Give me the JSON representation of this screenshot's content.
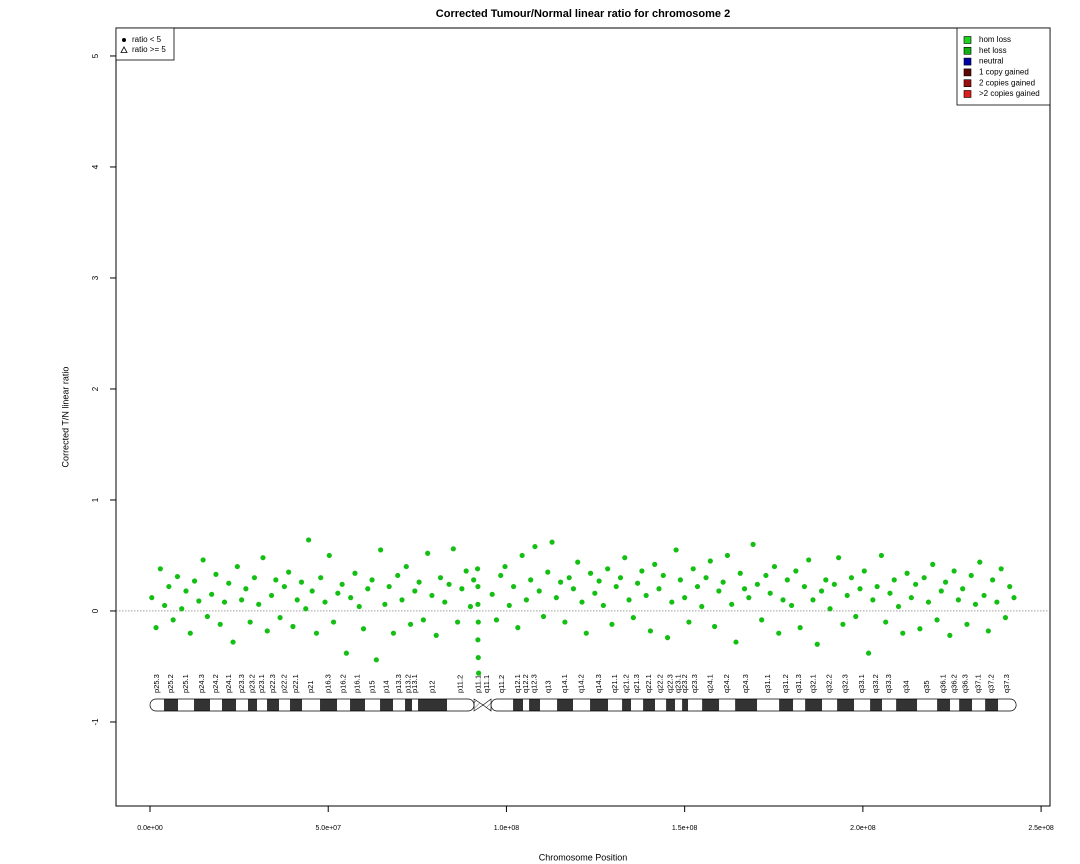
{
  "chart_data": {
    "type": "scatter",
    "title": "Corrected Tumour/Normal linear ratio for chromosome  2",
    "x_label": "Chromosome Position",
    "y_label": "Corrected T/N linear ratio",
    "xlim": [
      -9540000,
      252500000
    ],
    "ylim": [
      -1.757,
      5.252
    ],
    "xticks": [
      {
        "value": 0,
        "label": "0.0e+00"
      },
      {
        "value": 50000000,
        "label": "5.0e+07"
      },
      {
        "value": 100000000,
        "label": "1.0e+08"
      },
      {
        "value": 150000000,
        "label": "1.5e+08"
      },
      {
        "value": 200000000,
        "label": "2.0e+08"
      },
      {
        "value": 250000000,
        "label": "2.5e+08"
      }
    ],
    "yticks": [
      -1,
      0,
      1,
      2,
      3,
      4,
      5
    ],
    "hline": 0,
    "shape_legend": [
      "ratio < 5",
      "ratio >= 5"
    ],
    "color_legend": [
      {
        "label": "hom loss",
        "color": "#1fd21f"
      },
      {
        "label": "het loss",
        "color": "#10b010"
      },
      {
        "label": "neutral",
        "color": "#0000a8"
      },
      {
        "label": "1 copy gained",
        "color": "#5a0a00"
      },
      {
        "label": "2 copies gained",
        "color": "#9a1010"
      },
      {
        "label": ">2 copies gained",
        "color": "#dd1c1c"
      }
    ],
    "series": [
      {
        "color": "#14bf14",
        "x": [
          500000,
          1700000,
          2900000,
          4100000,
          5300000,
          6500000,
          7700000,
          8900000,
          10100000,
          11300000,
          12500000,
          13700000,
          14900000,
          16100000,
          17300000,
          18500000,
          19700000,
          20900000,
          22100000,
          23300000,
          24500000,
          25700000,
          26900000,
          28100000,
          29300000,
          30500000,
          31700000,
          32900000,
          34100000,
          35300000,
          36500000,
          37700000,
          38900000,
          40100000,
          41300000,
          42500000,
          43700000,
          44500000,
          45500000,
          46700000,
          47900000,
          49100000,
          50300000,
          51500000,
          52700000,
          53900000,
          55100000,
          56300000,
          57500000,
          58700000,
          59900000,
          61100000,
          62300000,
          63500000,
          64700000,
          65900000,
          67100000,
          68300000,
          69500000,
          70700000,
          71900000,
          73100000,
          74300000,
          75500000,
          76700000,
          77900000,
          79100000,
          80300000,
          81500000,
          82700000,
          83900000,
          85100000,
          86300000,
          87500000,
          88700000,
          89900000,
          90800000,
          91900000,
          92000000,
          92000000,
          92100000,
          92000000,
          92100000,
          92200000,
          96000000,
          97200000,
          98400000,
          99600000,
          100800000,
          102000000,
          103200000,
          104400000,
          105600000,
          106800000,
          108000000,
          109200000,
          110400000,
          111600000,
          112800000,
          114000000,
          115200000,
          116400000,
          117600000,
          118800000,
          120000000,
          121200000,
          122400000,
          123600000,
          124800000,
          126000000,
          127200000,
          128400000,
          129600000,
          130800000,
          132000000,
          133200000,
          134400000,
          135600000,
          136800000,
          138000000,
          139200000,
          140400000,
          141600000,
          142800000,
          144000000,
          145200000,
          146400000,
          147600000,
          148800000,
          150000000,
          151200000,
          152400000,
          153600000,
          154800000,
          156000000,
          157200000,
          158400000,
          159600000,
          160800000,
          162000000,
          163200000,
          164400000,
          165600000,
          166800000,
          168000000,
          169200000,
          170400000,
          171600000,
          172800000,
          174000000,
          175200000,
          176400000,
          177600000,
          178800000,
          180000000,
          181200000,
          182400000,
          183600000,
          184800000,
          186000000,
          187200000,
          188400000,
          189600000,
          190800000,
          192000000,
          193200000,
          194400000,
          195600000,
          196800000,
          198000000,
          199200000,
          200400000,
          201600000,
          202800000,
          204000000,
          205200000,
          206400000,
          207600000,
          208800000,
          210000000,
          211200000,
          212400000,
          213600000,
          214800000,
          216000000,
          217200000,
          218400000,
          219600000,
          220800000,
          222000000,
          223200000,
          224400000,
          225600000,
          226800000,
          228000000,
          229200000,
          230400000,
          231600000,
          232800000,
          234000000,
          235200000,
          236400000,
          237600000,
          238800000,
          240000000,
          241200000,
          242400000
        ],
        "values": [
          0.12,
          -0.15,
          0.38,
          0.05,
          0.22,
          -0.08,
          0.31,
          0.02,
          0.18,
          -0.2,
          0.27,
          0.09,
          0.46,
          -0.05,
          0.15,
          0.33,
          -0.12,
          0.08,
          0.25,
          -0.28,
          0.4,
          0.1,
          0.2,
          -0.1,
          0.3,
          0.06,
          0.48,
          -0.18,
          0.14,
          0.28,
          -0.06,
          0.22,
          0.35,
          -0.14,
          0.1,
          0.26,
          0.02,
          0.64,
          0.18,
          -0.2,
          0.3,
          0.08,
          0.5,
          -0.1,
          0.16,
          0.24,
          -0.38,
          0.12,
          0.34,
          0.04,
          -0.16,
          0.2,
          0.28,
          -0.44,
          0.55,
          0.06,
          0.22,
          -0.2,
          0.32,
          0.1,
          0.4,
          -0.12,
          0.18,
          0.26,
          -0.08,
          0.52,
          0.14,
          -0.22,
          0.3,
          0.08,
          0.24,
          0.56,
          -0.1,
          0.2,
          0.36,
          0.04,
          0.28,
          0.38,
          0.22,
          0.06,
          -0.1,
          -0.26,
          -0.42,
          -0.56,
          0.15,
          -0.08,
          0.32,
          0.4,
          0.05,
          0.22,
          -0.15,
          0.5,
          0.1,
          0.28,
          0.58,
          0.18,
          -0.05,
          0.35,
          0.62,
          0.12,
          0.26,
          -0.1,
          0.3,
          0.2,
          0.44,
          0.08,
          -0.2,
          0.34,
          0.16,
          0.27,
          0.05,
          0.38,
          -0.12,
          0.22,
          0.3,
          0.48,
          0.1,
          -0.06,
          0.25,
          0.36,
          0.14,
          -0.18,
          0.42,
          0.2,
          0.32,
          -0.24,
          0.08,
          0.55,
          0.28,
          0.12,
          -0.1,
          0.38,
          0.22,
          0.04,
          0.3,
          0.45,
          -0.14,
          0.18,
          0.26,
          0.5,
          0.06,
          -0.28,
          0.34,
          0.2,
          0.12,
          0.6,
          0.24,
          -0.08,
          0.32,
          0.16,
          0.4,
          -0.2,
          0.1,
          0.28,
          0.05,
          0.36,
          -0.15,
          0.22,
          0.46,
          0.1,
          -0.3,
          0.18,
          0.28,
          0.02,
          0.24,
          0.48,
          -0.12,
          0.14,
          0.3,
          -0.05,
          0.2,
          0.36,
          -0.38,
          0.1,
          0.22,
          0.5,
          -0.1,
          0.16,
          0.28,
          0.04,
          -0.2,
          0.34,
          0.12,
          0.24,
          -0.16,
          0.3,
          0.08,
          0.42,
          -0.08,
          0.18,
          0.26,
          -0.22,
          0.36,
          0.1,
          0.2,
          -0.12,
          0.32,
          0.06,
          0.44,
          0.14,
          -0.18,
          0.28,
          0.08,
          0.38,
          -0.06,
          0.22,
          0.12
        ]
      }
    ],
    "ideogram": {
      "labels": [
        "p25.3",
        "p25.2",
        "p25.1",
        "p24.3",
        "p24.2",
        "p24.1",
        "p23.3",
        "p23.2",
        "p23.1",
        "p22.3",
        "p22.2",
        "p22.1",
        "p21",
        "p16.3",
        "p16.2",
        "p16.1",
        "p15",
        "p14",
        "p13.3",
        "p13.2",
        "p13.1",
        "p12",
        "p11.2",
        "p11.1",
        "q11.1",
        "q11.2",
        "q12.1",
        "q12.2",
        "q12.3",
        "q13",
        "q14.1",
        "q14.2",
        "q14.3",
        "q21.1",
        "q21.2",
        "q21.3",
        "q22.1",
        "q22.2",
        "q22.3",
        "q23.1",
        "q23.2",
        "q23.3",
        "q24.1",
        "q24.2",
        "q24.3",
        "q31.1",
        "q31.2",
        "q31.3",
        "q32.1",
        "q32.2",
        "q32.3",
        "q33.1",
        "q33.2",
        "q33.3",
        "q34",
        "q35",
        "q36.1",
        "q36.2",
        "q36.3",
        "q37.1",
        "q37.2",
        "q37.3"
      ],
      "edges": [
        0,
        3930000,
        7860000,
        12350000,
        16840000,
        20200000,
        24130000,
        27500000,
        30020000,
        32830000,
        36200000,
        39280000,
        42650000,
        47700000,
        52470000,
        56120000,
        60330000,
        64540000,
        68190000,
        71550000,
        73520000,
        75200000,
        83340000,
        90910000,
        93440000,
        95680000,
        101860000,
        104660000,
        106350000,
        109430000,
        114200000,
        118690000,
        123460000,
        128510000,
        132440000,
        134970000,
        138340000,
        141700000,
        144790000,
        147320000,
        149280000,
        150970000,
        154900000,
        159670000,
        164160000,
        170330000,
        176500000,
        180430000,
        183800000,
        188560000,
        192770000,
        197540000,
        202030000,
        205400000,
        209330000,
        215220000,
        220830000,
        224460000,
        227010000,
        230650000,
        234300000,
        237950000,
        243000000
      ],
      "stains": [
        "gneg",
        "gpos",
        "gneg",
        "gpos",
        "gneg",
        "gpos",
        "gneg",
        "gpos",
        "gneg",
        "gpos",
        "gneg",
        "gpos",
        "gneg",
        "gpos",
        "gneg",
        "gpos",
        "gneg",
        "gpos",
        "gneg",
        "gpos",
        "gneg",
        "gpos",
        "gneg",
        "acen",
        "acen",
        "gneg",
        "gpos",
        "gneg",
        "gpos",
        "gneg",
        "gpos",
        "gneg",
        "gpos",
        "gneg",
        "gpos",
        "gneg",
        "gpos",
        "gneg",
        "gpos",
        "gneg",
        "gpos",
        "gneg",
        "gpos",
        "gneg",
        "gpos",
        "gneg",
        "gpos",
        "gneg",
        "gpos",
        "gneg",
        "gpos",
        "gneg",
        "gpos",
        "gneg",
        "gpos",
        "gneg",
        "gpos",
        "gneg",
        "gpos",
        "gneg",
        "gpos",
        "gneg"
      ]
    }
  }
}
